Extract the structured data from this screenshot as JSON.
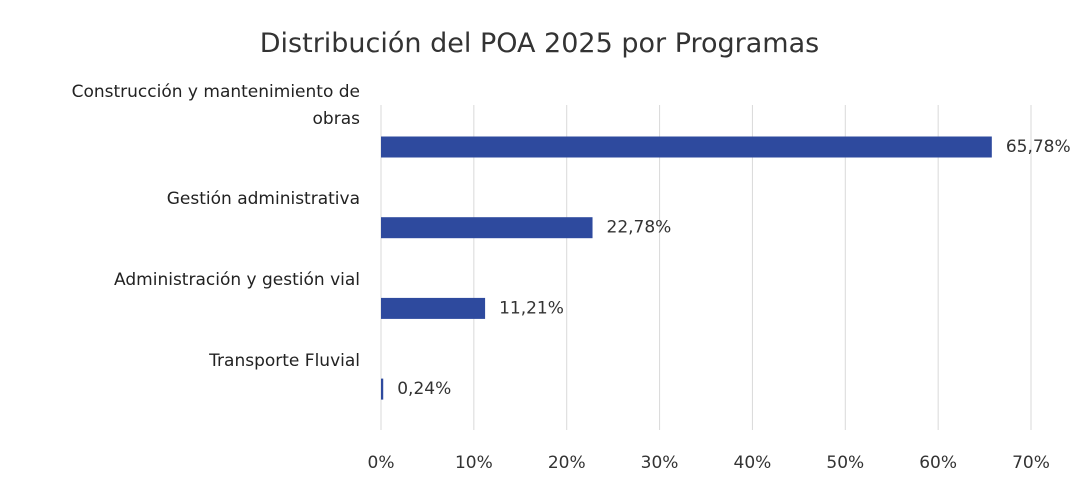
{
  "chart_data": {
    "type": "bar",
    "orientation": "horizontal",
    "title": "Distribución del POA 2025 por Programas",
    "categories": [
      "Construcción y mantenimiento de obras",
      "Gestión administrativa",
      "Administración y gestión vial",
      "Transporte Fluvial"
    ],
    "values": [
      65.78,
      22.78,
      11.21,
      0.24
    ],
    "value_labels": [
      "65,78%",
      "22,78%",
      "11,21%",
      "0,24%"
    ],
    "color": "#2e4a9e",
    "xlim": [
      0,
      70
    ],
    "xticks": [
      {
        "value": 0,
        "label": "0%"
      },
      {
        "value": 10,
        "label": "10%"
      },
      {
        "value": 20,
        "label": "20%"
      },
      {
        "value": 30,
        "label": "30%"
      },
      {
        "value": 40,
        "label": "40%"
      },
      {
        "value": 50,
        "label": "50%"
      },
      {
        "value": 60,
        "label": "60%"
      },
      {
        "value": 70,
        "label": "70%"
      }
    ],
    "grid": true
  }
}
